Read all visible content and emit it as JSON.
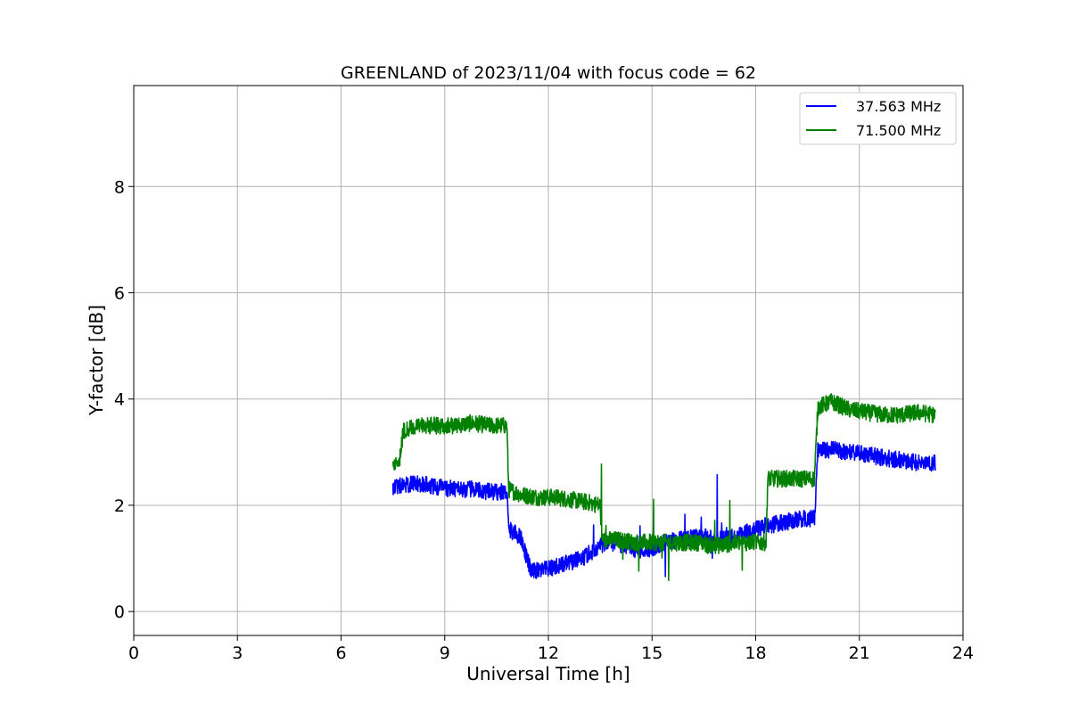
{
  "chart_data": {
    "type": "line",
    "title": "GREENLAND of 2023/11/04 with focus code = 62",
    "xlabel": "Universal Time [h]",
    "ylabel": "Y-factor [dB]",
    "xlim": [
      0,
      24
    ],
    "ylim": [
      -0.45,
      9.9
    ],
    "xticks": [
      0,
      3,
      6,
      9,
      12,
      15,
      18,
      21,
      24
    ],
    "yticks": [
      0,
      2,
      4,
      6,
      8
    ],
    "grid": true,
    "legend_position": "top-right",
    "series": [
      {
        "name": "37.563 MHz",
        "color": "#0000ff",
        "x": [
          7.5,
          7.8,
          8.3,
          8.8,
          9.3,
          9.8,
          10.3,
          10.8,
          10.85,
          11.2,
          11.5,
          12.0,
          12.5,
          13.0,
          13.5,
          13.8,
          14.2,
          14.6,
          15.0,
          15.4,
          15.8,
          16.2,
          16.6,
          17.0,
          17.4,
          17.8,
          18.2,
          18.6,
          19.0,
          19.4,
          19.7,
          19.8,
          20.2,
          20.7,
          21.2,
          21.7,
          22.2,
          22.7,
          23.2
        ],
        "y": [
          2.35,
          2.4,
          2.4,
          2.35,
          2.3,
          2.3,
          2.25,
          2.25,
          1.55,
          1.4,
          0.75,
          0.8,
          0.9,
          1.0,
          1.25,
          1.3,
          1.25,
          1.15,
          1.2,
          1.3,
          1.35,
          1.4,
          1.4,
          1.35,
          1.4,
          1.5,
          1.6,
          1.65,
          1.7,
          1.75,
          1.75,
          3.05,
          3.05,
          3.0,
          2.95,
          2.9,
          2.85,
          2.8,
          2.8
        ]
      },
      {
        "name": "71.500 MHz",
        "color": "#008000",
        "x": [
          7.5,
          7.7,
          7.8,
          8.3,
          8.8,
          9.3,
          9.8,
          10.3,
          10.8,
          10.85,
          11.2,
          11.7,
          12.2,
          12.7,
          13.2,
          13.5,
          13.55,
          14.0,
          14.5,
          15.0,
          15.5,
          16.0,
          16.5,
          16.6,
          17.0,
          17.5,
          18.0,
          18.3,
          18.35,
          18.8,
          19.3,
          19.7,
          19.8,
          20.2,
          20.7,
          21.2,
          21.7,
          22.2,
          22.7,
          23.2
        ],
        "y": [
          2.7,
          2.9,
          3.4,
          3.5,
          3.5,
          3.5,
          3.55,
          3.5,
          3.5,
          2.3,
          2.2,
          2.15,
          2.15,
          2.1,
          2.05,
          2.0,
          1.35,
          1.35,
          1.3,
          1.3,
          1.3,
          1.3,
          1.3,
          1.25,
          1.25,
          1.3,
          1.3,
          1.3,
          2.5,
          2.5,
          2.5,
          2.5,
          3.85,
          3.95,
          3.8,
          3.75,
          3.7,
          3.7,
          3.75,
          3.7
        ]
      }
    ]
  }
}
